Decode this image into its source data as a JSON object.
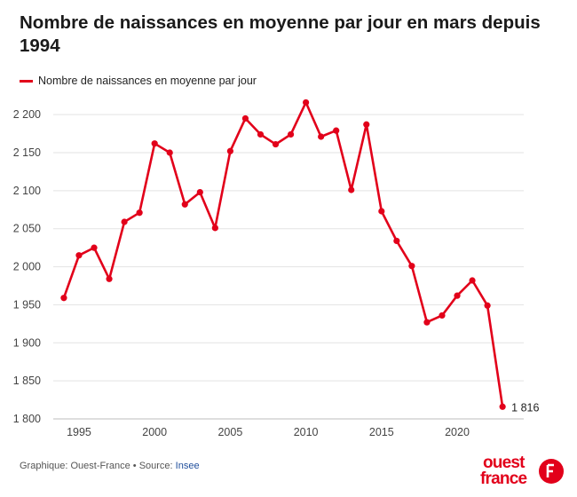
{
  "chart_data": {
    "type": "line",
    "title": "Nombre de naissances en moyenne par jour en mars depuis 1994",
    "series": [
      {
        "name": "Nombre de naissances en moyenne par jour",
        "color": "#e2001a",
        "x": [
          1994,
          1995,
          1996,
          1997,
          1998,
          1999,
          2000,
          2001,
          2002,
          2003,
          2004,
          2005,
          2006,
          2007,
          2008,
          2009,
          2010,
          2011,
          2012,
          2013,
          2014,
          2015,
          2016,
          2017,
          2018,
          2019,
          2020,
          2021,
          2022,
          2023
        ],
        "y": [
          1959,
          2015,
          2025,
          1984,
          2059,
          2071,
          2162,
          2150,
          2082,
          2098,
          2051,
          2152,
          2195,
          2174,
          2161,
          2174,
          2216,
          2171,
          2179,
          2101,
          2187,
          2073,
          2034,
          2001,
          1927,
          1936,
          1962,
          1982,
          1949,
          1816
        ]
      }
    ],
    "xlim": [
      1993.3,
      2024.4
    ],
    "ylim": [
      1800,
      2220
    ],
    "yticks": [
      1800,
      1850,
      1900,
      1950,
      2000,
      2050,
      2100,
      2150,
      2200
    ],
    "ytick_labels": [
      "1 800",
      "1 850",
      "1 900",
      "1 950",
      "2 000",
      "2 050",
      "2 100",
      "2 150",
      "2 200"
    ],
    "xticks": [
      1995,
      2000,
      2005,
      2010,
      2015,
      2020
    ],
    "xtick_labels": [
      "1995",
      "2000",
      "2005",
      "2010",
      "2015",
      "2020"
    ],
    "annotation": {
      "x": 2023,
      "y": 1816,
      "text": "1 816"
    },
    "grid": true,
    "legend_position": "top-left"
  },
  "footer": {
    "credit": "Graphique: Ouest-France • Source: ",
    "source": "Insee"
  },
  "logo": {
    "line1": "ouest",
    "line2": "france",
    "color": "#e2001a"
  }
}
